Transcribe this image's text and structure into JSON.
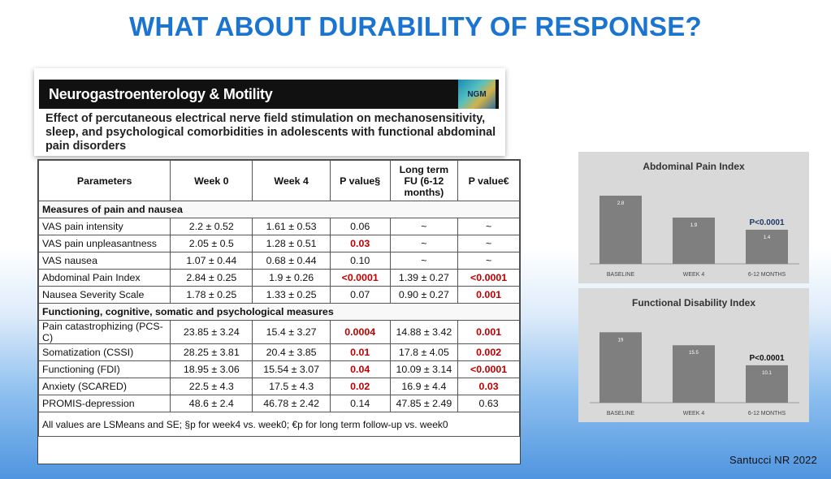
{
  "slide": {
    "title": "WHAT ABOUT DURABILITY OF RESPONSE?",
    "credit": "Santucci NR 2022"
  },
  "journal": {
    "name": "Neurogastroenterology & Motility",
    "logo_text": "NGM",
    "article_title": "Effect of percutaneous electrical nerve field stimulation on mechanosensitivity, sleep, and psychological comorbidities in adolescents with functional abdominal pain disorders"
  },
  "table": {
    "headers": [
      "Parameters",
      "Week 0",
      "Week 4",
      "P value§",
      "Long term FU (6-12 months)",
      "P value€"
    ],
    "sections": [
      {
        "title": "Measures of pain and nausea",
        "rows": [
          {
            "param": "VAS pain intensity",
            "w0": "2.2 ± 0.52",
            "w4": "1.61 ± 0.53",
            "p1": "0.06",
            "p1_sig": false,
            "fu": "~",
            "p2": "~",
            "p2_sig": false
          },
          {
            "param": "VAS pain unpleasantness",
            "w0": "2.05 ± 0.5",
            "w4": "1.28 ± 0.51",
            "p1": "0.03",
            "p1_sig": true,
            "fu": "~",
            "p2": "~",
            "p2_sig": false
          },
          {
            "param": "VAS nausea",
            "w0": "1.07 ± 0.44",
            "w4": "0.68 ± 0.44",
            "p1": "0.10",
            "p1_sig": false,
            "fu": "~",
            "p2": "~",
            "p2_sig": false
          },
          {
            "param": "Abdominal Pain Index",
            "w0": "2.84 ± 0.25",
            "w4": "1.9 ± 0.26",
            "p1": "<0.0001",
            "p1_sig": true,
            "fu": "1.39 ± 0.27",
            "p2": "<0.0001",
            "p2_sig": true
          },
          {
            "param": "Nausea Severity Scale",
            "w0": "1.78 ± 0.25",
            "w4": "1.33 ± 0.25",
            "p1": "0.07",
            "p1_sig": false,
            "fu": "0.90 ± 0.27",
            "p2": "0.001",
            "p2_sig": true
          }
        ]
      },
      {
        "title": "Functioning, cognitive, somatic and psychological measures",
        "rows": [
          {
            "param": "Pain catastrophizing (PCS-C)",
            "w0": "23.85 ± 3.24",
            "w4": "15.4 ± 3.27",
            "p1": "0.0004",
            "p1_sig": true,
            "fu": "14.88 ± 3.42",
            "p2": "0.001",
            "p2_sig": true
          },
          {
            "param": "Somatization (CSSI)",
            "w0": "28.25 ± 3.81",
            "w4": "20.4 ± 3.85",
            "p1": "0.01",
            "p1_sig": true,
            "fu": "17.8 ± 4.05",
            "p2": "0.002",
            "p2_sig": true
          },
          {
            "param": "Functioning (FDI)",
            "w0": "18.95 ± 3.06",
            "w4": "15.54 ± 3.07",
            "p1": "0.04",
            "p1_sig": true,
            "fu": "10.09 ± 3.14",
            "p2": "<0.0001",
            "p2_sig": true
          },
          {
            "param": "Anxiety (SCARED)",
            "w0": "22.5 ± 4.3",
            "w4": "17.5 ± 4.3",
            "p1": "0.02",
            "p1_sig": true,
            "fu": "16.9 ± 4.4",
            "p2": "0.03",
            "p2_sig": true
          },
          {
            "param": "PROMIS-depression",
            "w0": "48.6 ± 2.4",
            "w4": "46.78 ± 2.42",
            "p1": "0.14",
            "p1_sig": false,
            "fu": "47.85 ± 2.49",
            "p2": "0.63",
            "p2_sig": false
          }
        ]
      }
    ],
    "footnote": "All values are LSMeans and SE; §p for week4 vs. week0; €p for long term follow-up vs. week0"
  },
  "colors": {
    "significant": "#c00000",
    "bar": "#7f7f7f",
    "panel": "#d9d9d9"
  },
  "chart_data": [
    {
      "type": "bar",
      "title": "Abdominal Pain Index",
      "categories": [
        "BASELINE",
        "WEEK 4",
        "6-12 MONTHS"
      ],
      "values": [
        2.8,
        1.9,
        1.4
      ],
      "value_labels": [
        "2.8",
        "1.9",
        "1.4"
      ],
      "annotation": "P<0.0001",
      "ylim": [
        0,
        3.4
      ],
      "grid": false
    },
    {
      "type": "bar",
      "title": "Functional Disability Index",
      "categories": [
        "BASELINE",
        "WEEK 4",
        "6-12 MONTHS"
      ],
      "values": [
        19,
        15.5,
        10.1
      ],
      "value_labels": [
        "19",
        "15.5",
        "10.1"
      ],
      "annotation": "P<0.0001",
      "ylim": [
        0,
        23
      ],
      "grid": false
    }
  ]
}
